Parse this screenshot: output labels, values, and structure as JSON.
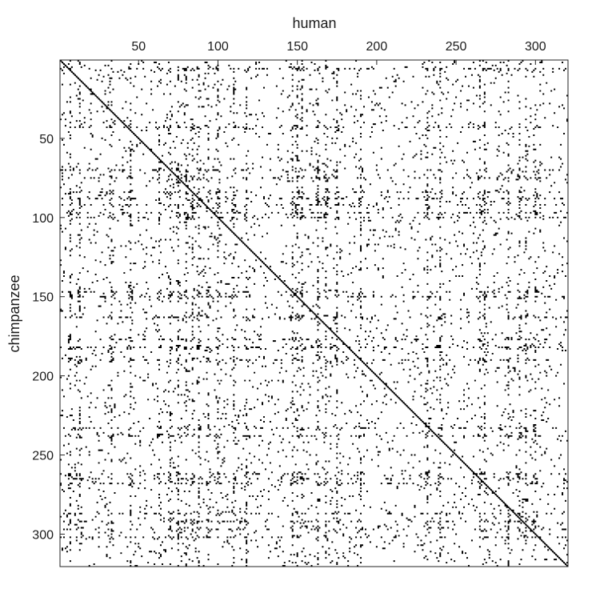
{
  "chart_data": {
    "type": "heatmap",
    "subtype": "dot-plot",
    "title": "",
    "xlabel": "human",
    "ylabel": "chimpanzee",
    "x_axis_position": "top",
    "y_axis_direction": "down",
    "xlim": [
      1,
      320
    ],
    "ylim": [
      1,
      320
    ],
    "xticks": [
      50,
      100,
      150,
      200,
      250,
      300
    ],
    "yticks": [
      50,
      100,
      150,
      200,
      250,
      300
    ],
    "xtick_labels": [
      "50",
      "100",
      "150",
      "200",
      "250",
      "300"
    ],
    "ytick_labels": [
      "50",
      "100",
      "150",
      "200",
      "250",
      "300"
    ],
    "grid": false,
    "cell_color": "#000000",
    "background_color": "#ffffff",
    "diagonal": {
      "from": 1,
      "to": 320,
      "description": "main diagonal of identical matches from (1,1) to (320,320)"
    },
    "strong_rows": [
      6,
      43,
      70,
      75,
      84,
      88,
      92,
      97,
      100,
      147,
      150,
      163,
      177,
      182,
      190,
      233,
      238,
      262,
      265,
      268,
      287,
      292,
      297,
      302
    ],
    "strong_cols": [
      7,
      13,
      33,
      45,
      63,
      70,
      75,
      80,
      84,
      88,
      94,
      100,
      110,
      118,
      147,
      150,
      153,
      163,
      168,
      175,
      190,
      232,
      240,
      265,
      268,
      283,
      290,
      294,
      300
    ]
  }
}
